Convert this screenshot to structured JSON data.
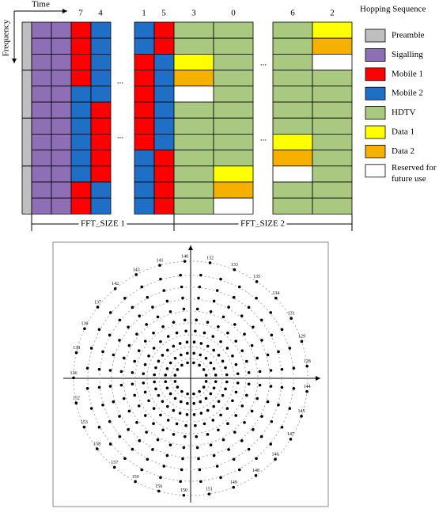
{
  "header": {
    "time": "Time",
    "frequency": "Frequency",
    "hopping_sequence": "Hopping Sequence"
  },
  "column_labels": [
    "7",
    "4",
    "1",
    "5",
    "3",
    "0",
    "6",
    "2"
  ],
  "ellipses": [
    "...",
    "...",
    "...",
    "..."
  ],
  "fft_labels": [
    "FFT_SIZE 1",
    "FFT_SIZE 2"
  ],
  "legend": [
    {
      "label": "Preamble",
      "color": "#bfbfbf"
    },
    {
      "label": "Sigalling",
      "color": "#8e6fb5"
    },
    {
      "label": "Mobile 1",
      "color": "#ff0000"
    },
    {
      "label": "Mobile 2",
      "color": "#1f6fc7"
    },
    {
      "label": "HDTV",
      "color": "#a8c97f"
    },
    {
      "label": "Data 1",
      "color": "#ffff00"
    },
    {
      "label": "Data 2",
      "color": "#f5b000"
    },
    {
      "label": "Reserved for future use",
      "color": "#ffffff"
    }
  ],
  "constellation": {
    "outer_ring_labels": [
      "140",
      "132",
      "133",
      "135",
      "134",
      "131",
      "129",
      "128",
      "144",
      "145",
      "147",
      "146",
      "148",
      "149",
      "151",
      "150",
      "156",
      "159",
      "157",
      "158",
      "153",
      "152",
      "136",
      "138",
      "139",
      "137",
      "142",
      "143",
      "141"
    ]
  }
}
